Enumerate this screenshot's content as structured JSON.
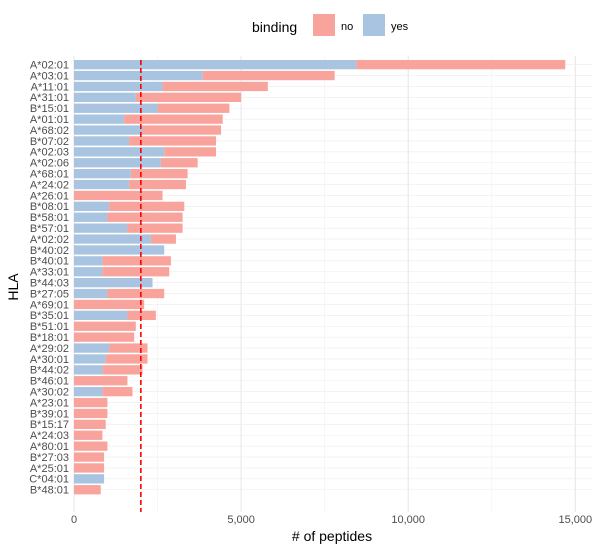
{
  "chart_data": {
    "type": "bar",
    "orientation": "horizontal",
    "stacked": true,
    "xlabel": "# of peptides",
    "ylabel": "HLA",
    "xlim": [
      0,
      15500
    ],
    "xticks": [
      0,
      5000,
      10000,
      15000
    ],
    "xtick_labels": [
      "0",
      "5,000",
      "10,000",
      "15,000"
    ],
    "grid": true,
    "legend": {
      "title": "binding",
      "position": "top",
      "entries": [
        {
          "key": "no",
          "label": "no",
          "color": "#F8A49C"
        },
        {
          "key": "yes",
          "label": "yes",
          "color": "#A8C4E0"
        }
      ]
    },
    "reference_line": {
      "x": 2000,
      "color": "#FF0000",
      "style": "dashed"
    },
    "categories": [
      "A*02:01",
      "A*03:01",
      "A*11:01",
      "A*31:01",
      "B*15:01",
      "A*01:01",
      "A*68:02",
      "B*07:02",
      "A*02:03",
      "A*02:06",
      "A*68:01",
      "A*24:02",
      "A*26:01",
      "B*08:01",
      "B*58:01",
      "B*57:01",
      "A*02:02",
      "B*40:02",
      "B*40:01",
      "A*33:01",
      "B*44:03",
      "B*27:05",
      "A*69:01",
      "B*35:01",
      "B*51:01",
      "B*18:01",
      "A*29:02",
      "A*30:01",
      "B*44:02",
      "B*46:01",
      "A*30:02",
      "A*23:01",
      "B*39:01",
      "B*15:17",
      "A*24:03",
      "A*80:01",
      "B*27:03",
      "A*25:01",
      "C*04:01",
      "B*48:01"
    ],
    "series": [
      {
        "name": "yes",
        "values": [
          8450,
          3850,
          2650,
          1850,
          2500,
          1500,
          2050,
          1650,
          2700,
          2600,
          1700,
          1650,
          0,
          1050,
          1000,
          1600,
          2300,
          2700,
          850,
          850,
          2350,
          1000,
          0,
          1600,
          0,
          0,
          1050,
          950,
          850,
          0,
          850,
          0,
          0,
          0,
          0,
          0,
          0,
          0,
          900,
          0
        ]
      },
      {
        "name": "no",
        "values": [
          6250,
          3950,
          3150,
          3150,
          2150,
          2950,
          2350,
          2600,
          1550,
          1100,
          1700,
          1700,
          2650,
          2250,
          2250,
          1650,
          750,
          0,
          2050,
          2000,
          0,
          1700,
          2100,
          850,
          1850,
          1800,
          1150,
          1250,
          1200,
          1600,
          900,
          1000,
          1000,
          950,
          850,
          1000,
          900,
          900,
          0,
          800
        ]
      }
    ]
  }
}
